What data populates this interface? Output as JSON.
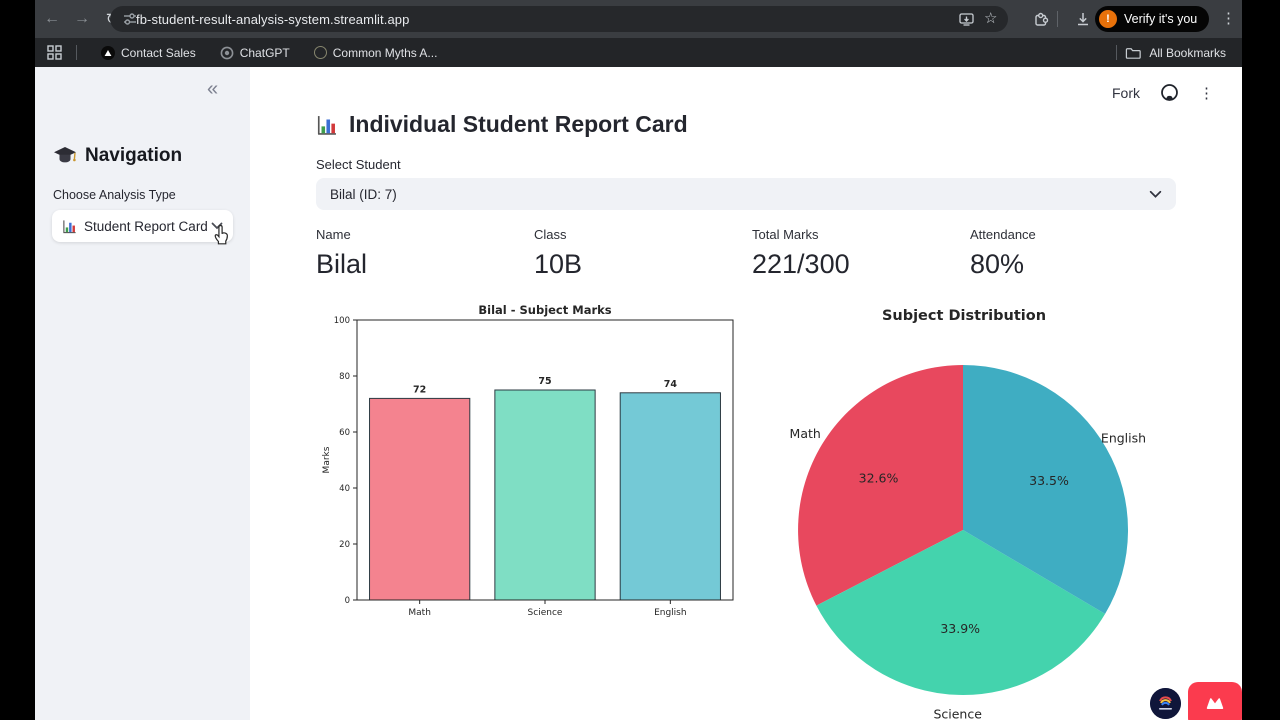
{
  "browser": {
    "url": "fb-student-result-analysis-system.streamlit.app",
    "verify_button": "Verify it's you",
    "glyphs": {
      "back": "←",
      "forward": "→",
      "reload": "↻",
      "star": "☆",
      "kebab": "⋮"
    },
    "bookmarks_bar": {
      "items": [
        {
          "label": "Contact Sales"
        },
        {
          "label": "ChatGPT"
        },
        {
          "label": "Common Myths A..."
        }
      ],
      "all_bookmarks": "All Bookmarks"
    }
  },
  "app": {
    "header": {
      "fork_label": "Fork",
      "kebab": "⋮"
    },
    "sidebar": {
      "collapse_glyph": "«",
      "nav_title": "Navigation",
      "nav_icon": "graduation-cap-emoji",
      "choose_label": "Choose Analysis Type",
      "select_icon": "bar-chart-emoji",
      "select_value": "Student Report Card"
    },
    "main": {
      "title_icon": "bar-chart-emoji",
      "title": "Individual Student Report Card",
      "select_label": "Select Student",
      "select_value": "Bilal (ID: 7)",
      "metrics": [
        {
          "label": "Name",
          "value": "Bilal"
        },
        {
          "label": "Class",
          "value": "10B"
        },
        {
          "label": "Total Marks",
          "value": "221/300"
        },
        {
          "label": "Attendance",
          "value": "80%"
        }
      ]
    }
  },
  "chart_data": [
    {
      "type": "bar",
      "title": "Bilal - Subject Marks",
      "categories": [
        "Math",
        "Science",
        "English"
      ],
      "values": [
        72,
        75,
        74
      ],
      "value_labels": [
        "72",
        "75",
        "74"
      ],
      "bar_colors": [
        "#f4838f",
        "#7fdec4",
        "#74c9d6"
      ],
      "bar_edge_color": "#2b3a42",
      "xlabel": "",
      "ylabel": "Marks",
      "ylim": [
        0,
        100
      ],
      "yticks": [
        0,
        20,
        40,
        60,
        80,
        100
      ],
      "grid": false,
      "legend": "none"
    },
    {
      "type": "pie",
      "title": "Subject Distribution",
      "labels": [
        "Math",
        "Science",
        "English"
      ],
      "values": [
        72,
        75,
        74
      ],
      "pct_labels": [
        "32.6%",
        "33.9%",
        "33.5%"
      ],
      "slice_colors": [
        "#e8485e",
        "#44d3ad",
        "#3fadc2"
      ],
      "start_angle": 90,
      "direction": "counterclockwise",
      "legend": "none"
    }
  ]
}
